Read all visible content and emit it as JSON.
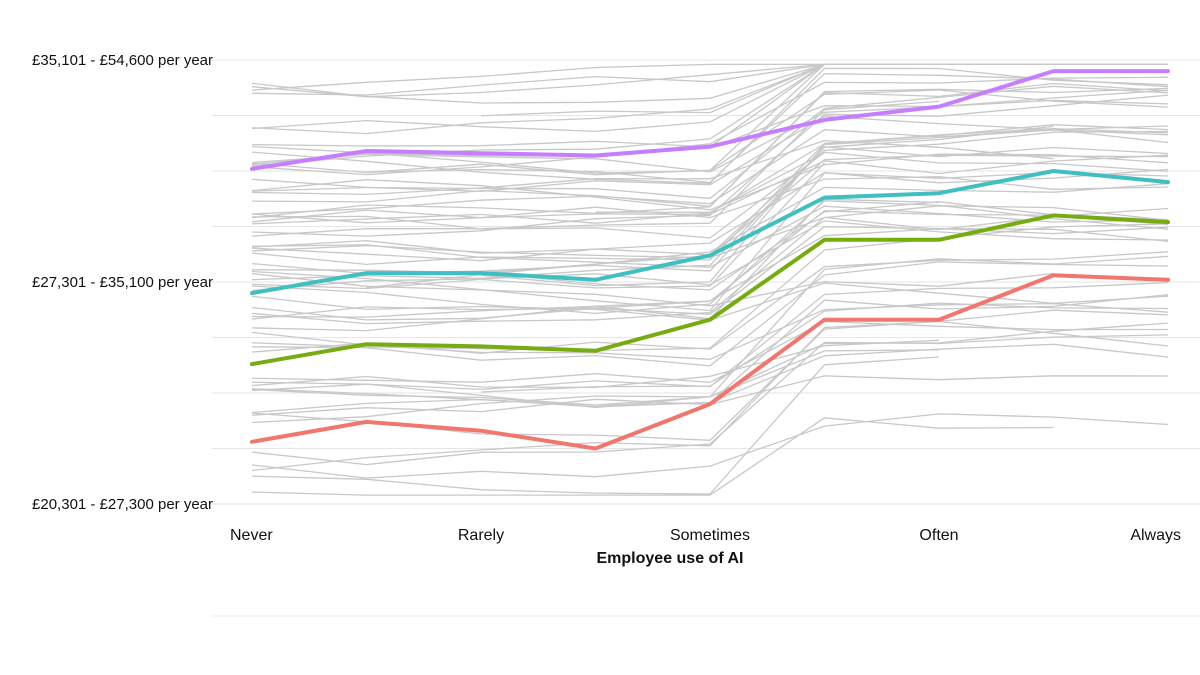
{
  "chart_data": {
    "type": "line",
    "title": "",
    "xlabel": "Employee use of AI",
    "ylabel": "",
    "x_tick_labels": [
      "Never",
      "Rarely",
      "Sometimes",
      "Often",
      "Always"
    ],
    "x": [
      1,
      1.5,
      2,
      2.5,
      3,
      3.5,
      4,
      4.5,
      5
    ],
    "xlim": [
      1,
      5
    ],
    "y_tick_labels": [
      {
        "label": "£35,101 - £54,600 per year",
        "value": 3
      },
      {
        "label": "£27,301 - £35,100 per year",
        "value": 2
      },
      {
        "label": "£20,301 - £27,300 per year",
        "value": 1
      }
    ],
    "ylim": [
      1,
      3
    ],
    "grid": true,
    "legend": "none",
    "colors": {
      "background_line": "#c8c8c8",
      "gridline": "#e6e6e6",
      "purple": "#c77dff",
      "teal": "#3fbfc0",
      "green": "#76ac12",
      "red": "#f1766e"
    },
    "series": [
      {
        "color": "purple",
        "values": [
          2.51,
          2.59,
          2.58,
          2.57,
          2.61,
          2.73,
          2.79,
          2.95,
          2.95
        ]
      },
      {
        "color": "teal",
        "values": [
          1.95,
          2.04,
          2.04,
          2.01,
          2.12,
          2.38,
          2.4,
          2.5,
          2.45
        ]
      },
      {
        "color": "green",
        "values": [
          1.63,
          1.72,
          1.71,
          1.69,
          1.83,
          2.19,
          2.19,
          2.3,
          2.27
        ]
      },
      {
        "color": "red",
        "values": [
          1.28,
          1.37,
          1.33,
          1.25,
          1.45,
          1.83,
          1.83,
          2.03,
          2.01
        ]
      }
    ],
    "background_series_count": 72
  }
}
